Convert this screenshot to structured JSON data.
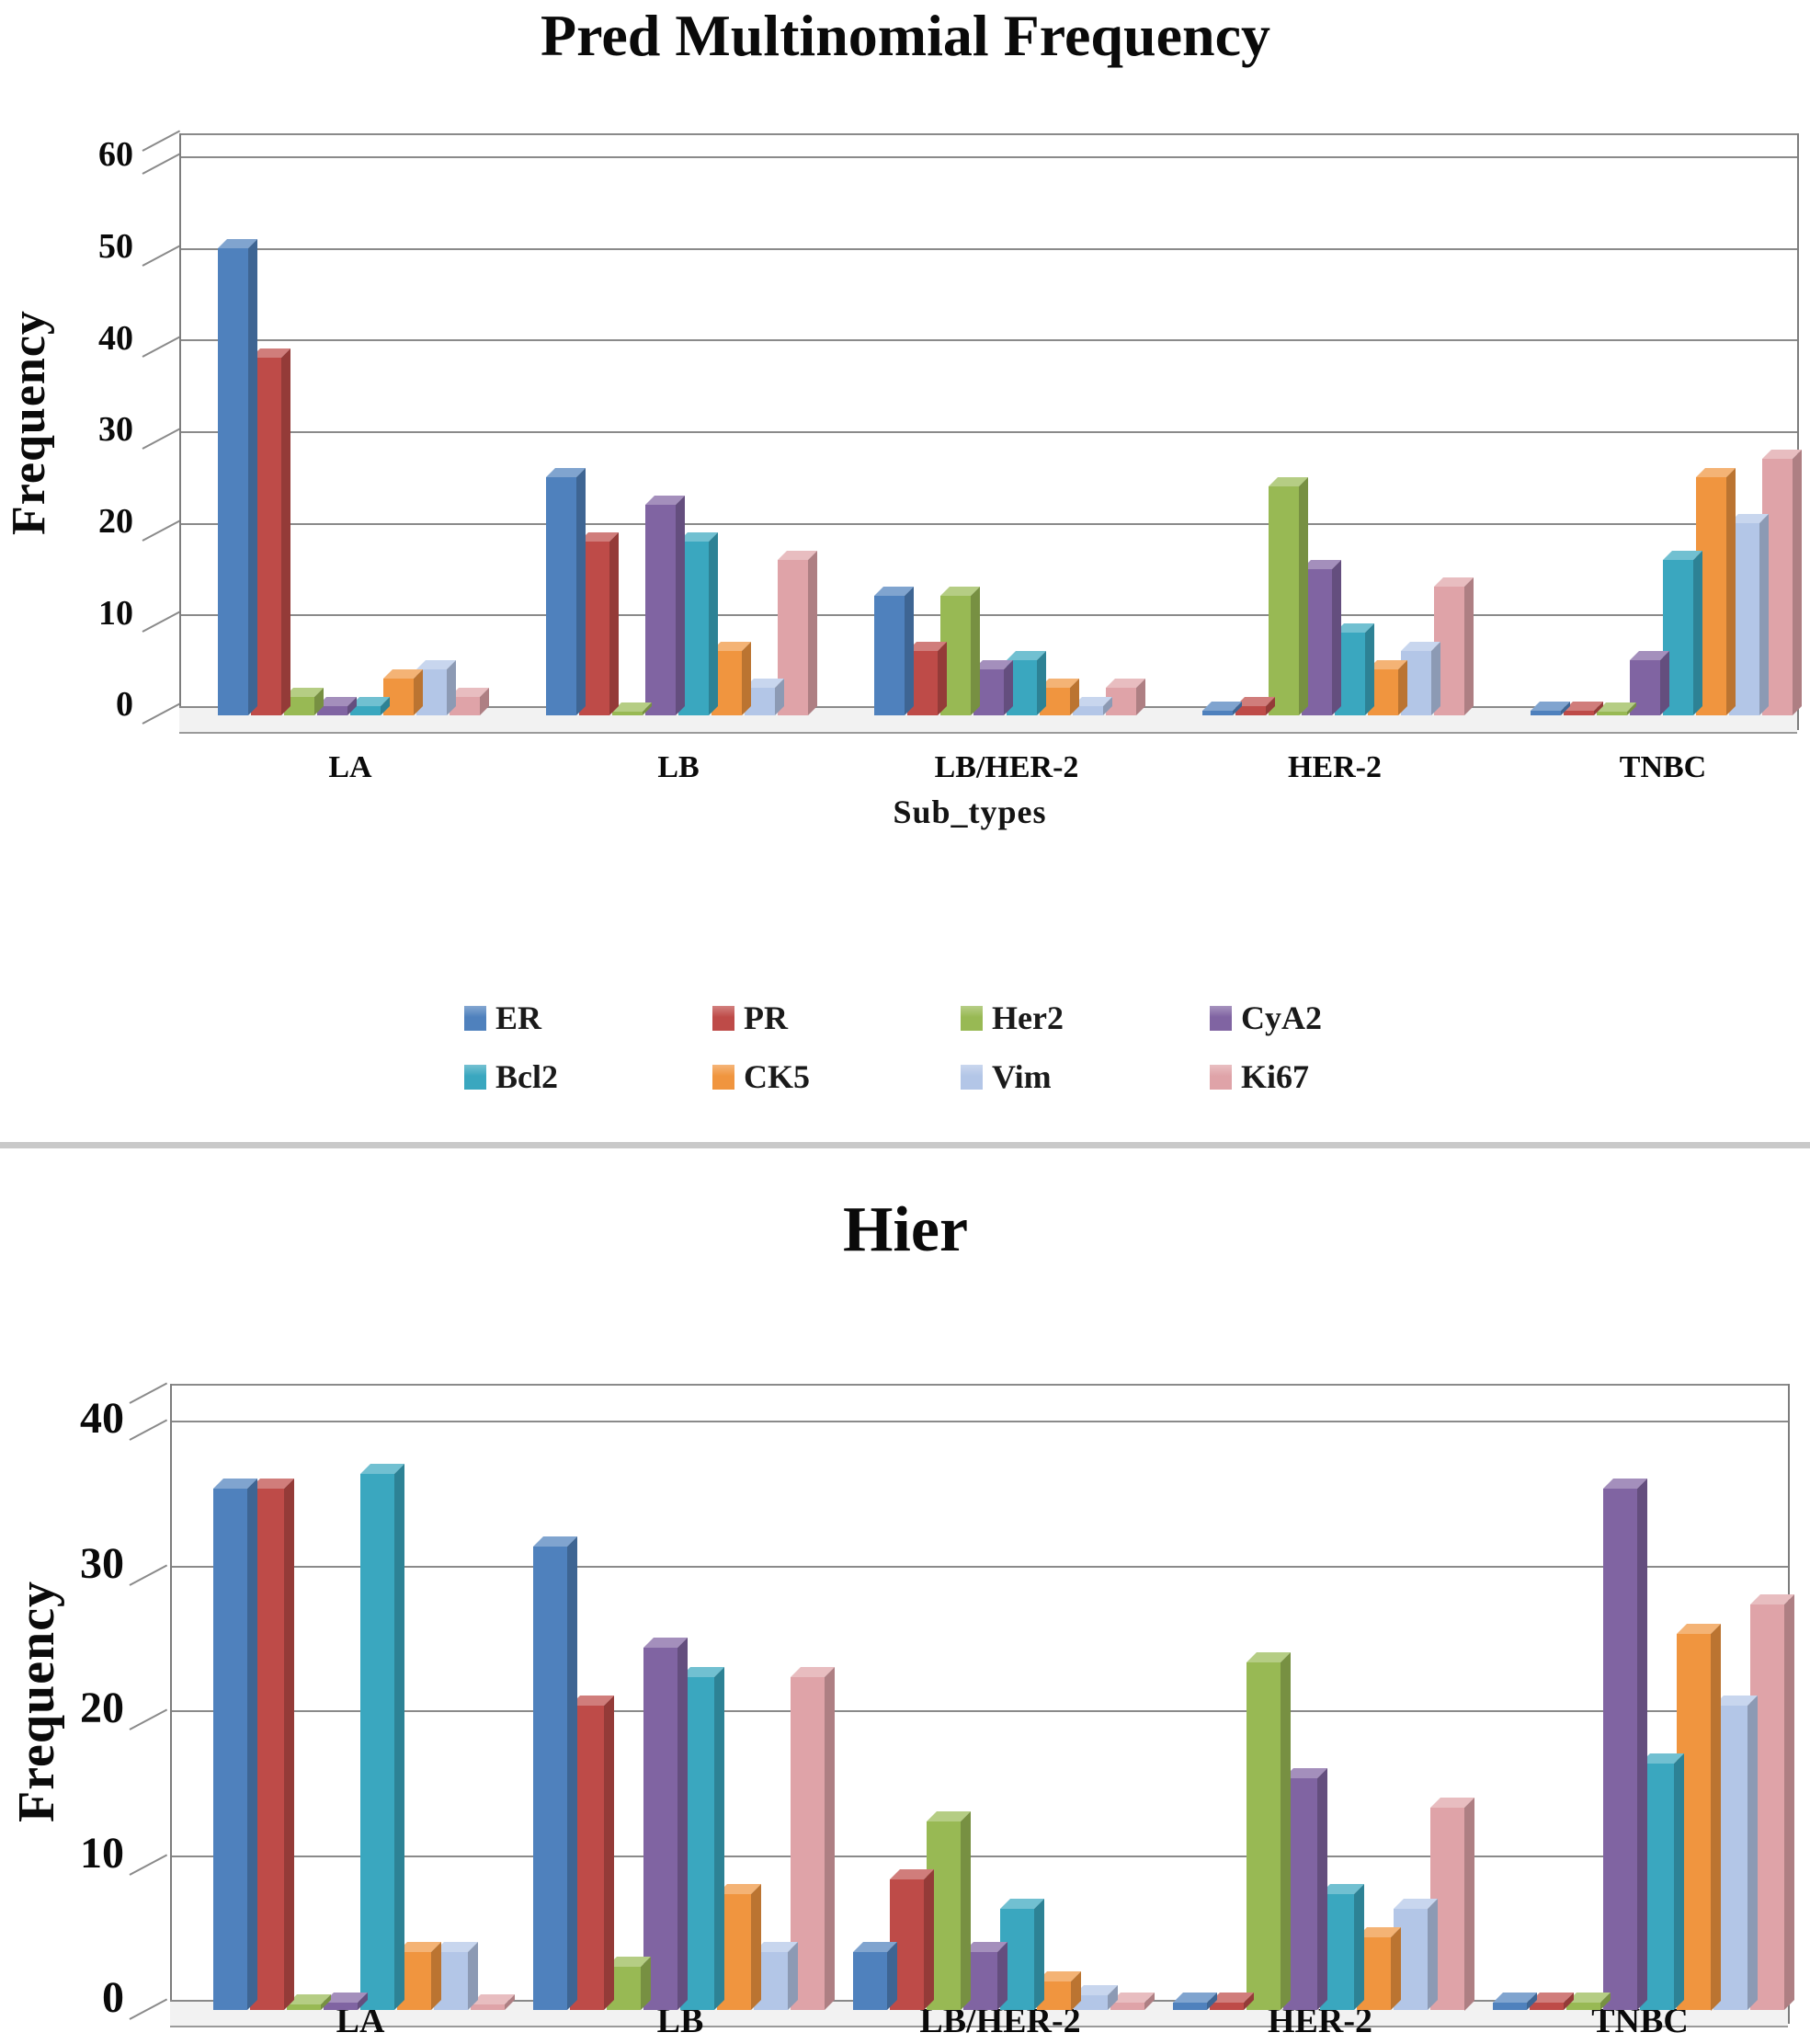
{
  "page": {
    "background": "#ffffff",
    "divider_color": "#c9c9c9"
  },
  "legend": {
    "position": "below-first-chart",
    "entries": [
      {
        "label": "ER",
        "color": "#4F81BD"
      },
      {
        "label": "PR",
        "color": "#BE4B48"
      },
      {
        "label": "Her2",
        "color": "#98B954"
      },
      {
        "label": "CyA2",
        "color": "#8064A2"
      },
      {
        "label": "Bcl2",
        "color": "#3AA7BF"
      },
      {
        "label": "CK5",
        "color": "#F0953F"
      },
      {
        "label": "Vim",
        "color": "#B3C6E7"
      },
      {
        "label": "Ki67",
        "color": "#DFA3A8"
      }
    ]
  },
  "chart_data": [
    {
      "id": "pred",
      "type": "bar",
      "style": "3d-clustered-column",
      "title": "Pred Multinomial Frequency",
      "xlabel": "Sub_types",
      "ylabel": "Frequency",
      "ylim": [
        0,
        60
      ],
      "yticks": [
        0,
        10,
        20,
        30,
        40,
        50,
        60
      ],
      "grid": true,
      "categories": [
        "LA",
        "LB",
        "LB/HER-2",
        "HER-2",
        "TNBC"
      ],
      "series": [
        {
          "name": "ER",
          "color": "#4F81BD",
          "values": [
            51,
            26,
            13,
            0.5,
            0.5
          ]
        },
        {
          "name": "PR",
          "color": "#BE4B48",
          "values": [
            39,
            19,
            7,
            1,
            0.5
          ]
        },
        {
          "name": "Her2",
          "color": "#98B954",
          "values": [
            2,
            0.4,
            13,
            25,
            0.4
          ]
        },
        {
          "name": "CyA2",
          "color": "#8064A2",
          "values": [
            1,
            23,
            5,
            16,
            6
          ]
        },
        {
          "name": "Bcl2",
          "color": "#3AA7BF",
          "values": [
            1,
            19,
            6,
            9,
            17
          ]
        },
        {
          "name": "CK5",
          "color": "#F0953F",
          "values": [
            4,
            7,
            3,
            5,
            26
          ]
        },
        {
          "name": "Vim",
          "color": "#B3C6E7",
          "values": [
            5,
            3,
            1,
            7,
            21
          ]
        },
        {
          "name": "Ki67",
          "color": "#DFA3A8",
          "values": [
            2,
            17,
            3,
            14,
            28
          ]
        }
      ]
    },
    {
      "id": "hier",
      "type": "bar",
      "style": "3d-clustered-column",
      "title": "Hier",
      "xlabel": "",
      "ylabel": "Frequency",
      "ylim": [
        0,
        40
      ],
      "yticks": [
        0,
        10,
        20,
        30,
        40
      ],
      "grid": true,
      "categories": [
        "LA",
        "LB",
        "LB/HER-2",
        "HER-2",
        "TNBC"
      ],
      "series": [
        {
          "name": "ER",
          "color": "#4F81BD",
          "values": [
            36,
            32,
            4,
            0.5,
            0.5
          ]
        },
        {
          "name": "PR",
          "color": "#BE4B48",
          "values": [
            36,
            21,
            9,
            0.5,
            0.5
          ]
        },
        {
          "name": "Her2",
          "color": "#98B954",
          "values": [
            0.4,
            3,
            13,
            24,
            0.5
          ]
        },
        {
          "name": "CyA2",
          "color": "#8064A2",
          "values": [
            0.5,
            25,
            4,
            16,
            36
          ]
        },
        {
          "name": "Bcl2",
          "color": "#3AA7BF",
          "values": [
            37,
            23,
            7,
            8,
            17
          ]
        },
        {
          "name": "CK5",
          "color": "#F0953F",
          "values": [
            4,
            8,
            2,
            5,
            26
          ]
        },
        {
          "name": "Vim",
          "color": "#B3C6E7",
          "values": [
            4,
            4,
            1,
            7,
            21
          ]
        },
        {
          "name": "Ki67",
          "color": "#DFA3A8",
          "values": [
            0.4,
            23,
            0.5,
            14,
            28
          ]
        }
      ]
    }
  ]
}
